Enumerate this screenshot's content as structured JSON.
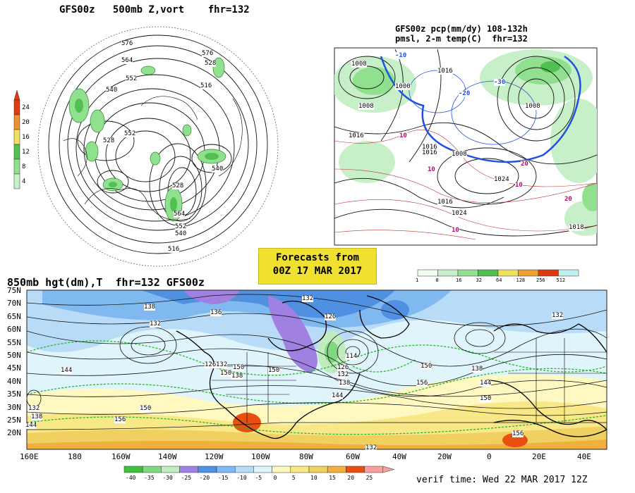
{
  "panel_500mb": {
    "title": "GFS00z   500mb Z,vort    fhr=132",
    "contour_labels": [
      "576",
      "564",
      "552",
      "540",
      "528",
      "552",
      "576",
      "528",
      "516",
      "540",
      "528",
      "564",
      "552",
      "540",
      "516"
    ],
    "colorbar_ticks": [
      "24",
      "20",
      "16",
      "12",
      "8",
      "4"
    ],
    "colorbar_colors": [
      "#e03a10",
      "#f09030",
      "#f0e060",
      "#50c050",
      "#90e090",
      "#c8f0c8"
    ]
  },
  "panel_precip": {
    "title_line1": "GFS00z pcp(mm/dy) 108-132h",
    "title_line2": "pmsl, 2-m temp(C)  fhr=132",
    "labels": [
      "1008",
      "1000",
      "1008",
      "1016",
      "1016",
      "1016",
      "1008",
      "1024",
      "1008",
      "1016",
      "1024",
      "1018",
      "1016",
      "-10",
      "-20",
      "-30",
      "10",
      "10",
      "10",
      "10",
      "20",
      "20"
    ],
    "colorbar_ticks": [
      "1",
      "8",
      "16",
      "32",
      "64",
      "128",
      "256",
      "512"
    ],
    "colorbar_colors": [
      "#f0fff0",
      "#c8f0c8",
      "#90e090",
      "#50c050",
      "#f0e060",
      "#f0a030",
      "#e03a10",
      "#c0f0f0"
    ]
  },
  "forecast_box": {
    "line1": "Forecasts from",
    "line2": "00Z 17 MAR 2017"
  },
  "panel_850mb": {
    "title": "850mb hgt(dm),T  fhr=132 GFS00z",
    "lat_ticks": [
      "75N",
      "70N",
      "65N",
      "60N",
      "55N",
      "50N",
      "45N",
      "40N",
      "35N",
      "30N",
      "25N",
      "20N"
    ],
    "lon_ticks": [
      "160E",
      "180",
      "160W",
      "140W",
      "120W",
      "100W",
      "80W",
      "60W",
      "40W",
      "20W",
      "0",
      "20E",
      "40E"
    ],
    "contour_labels": [
      "138",
      "132",
      "136",
      "132",
      "120",
      "126",
      "132",
      "138",
      "144",
      "150",
      "114",
      "126",
      "132",
      "138",
      "144",
      "150",
      "156",
      "150",
      "156",
      "132",
      "138",
      "144",
      "150",
      "132",
      "138",
      "144",
      "150",
      "156",
      "132",
      "150"
    ],
    "colorbar_ticks": [
      "-40",
      "-35",
      "-30",
      "-25",
      "-20",
      "-15",
      "-10",
      "-5",
      "0",
      "5",
      "10",
      "15",
      "20",
      "25"
    ],
    "colorbar_colors": [
      "#40c040",
      "#80d880",
      "#c0ecc0",
      "#a080e0",
      "#5090e0",
      "#80b8f0",
      "#b8dcf8",
      "#e0f4fc",
      "#fff8c0",
      "#f8e888",
      "#f0d060",
      "#f0b040",
      "#e85010",
      "#f8a0a0"
    ]
  },
  "verif_time": "verif time: Wed 22 MAR 2017 12Z"
}
